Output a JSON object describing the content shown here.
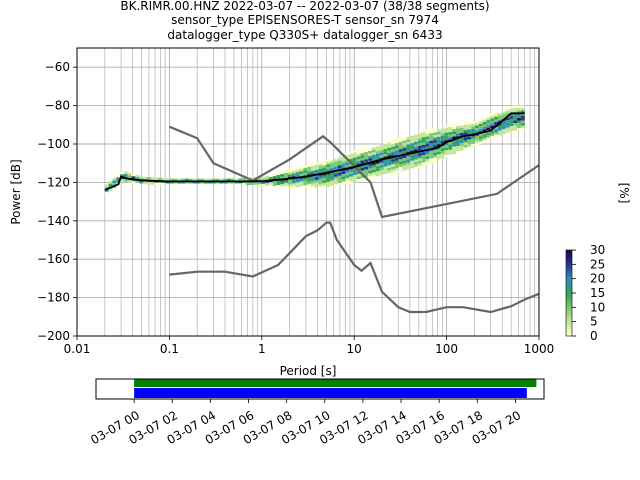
{
  "figure": {
    "title_lines": [
      "BK.RIMR.00.HNZ   2022-03-07 -- 2022-03-07  (38/38 segments)",
      "sensor_type EPISENSORES-T sensor_sn 7974",
      "datalogger_type Q330S+ datalogger_sn 6433"
    ]
  },
  "chart_data": [
    {
      "type": "heatmap",
      "title": "BK.RIMR.00.HNZ   2022-03-07 -- 2022-03-07  (38/38 segments)",
      "xlabel": "Period [s]",
      "ylabel": "Power [dB]",
      "xscale": "log",
      "xlim": [
        0.01,
        1000
      ],
      "ylim": [
        -200,
        -50
      ],
      "xticks": [
        0.01,
        0.1,
        1,
        10,
        100,
        1000
      ],
      "xtick_labels": [
        "0.01",
        "0.1",
        "1",
        "10",
        "100",
        "1000"
      ],
      "yticks": [
        -200,
        -180,
        -160,
        -140,
        -120,
        -100,
        -80,
        -60
      ],
      "ytick_labels": [
        "−200",
        "−180",
        "−160",
        "−140",
        "−120",
        "−100",
        "−80",
        "−60"
      ],
      "grid": true,
      "colorbar": {
        "label": "[%]",
        "range": [
          0,
          30
        ],
        "ticks": [
          0,
          5,
          10,
          15,
          20,
          25,
          30
        ]
      },
      "median_curve": [
        [
          0.02,
          -124
        ],
        [
          0.025,
          -122
        ],
        [
          0.028,
          -121
        ],
        [
          0.03,
          -117
        ],
        [
          0.035,
          -118
        ],
        [
          0.05,
          -119
        ],
        [
          0.1,
          -119.5
        ],
        [
          1,
          -119.5
        ],
        [
          2,
          -118
        ],
        [
          3,
          -117
        ],
        [
          5,
          -115
        ],
        [
          10,
          -112
        ],
        [
          20,
          -108
        ],
        [
          40,
          -105
        ],
        [
          80,
          -102
        ],
        [
          100,
          -99
        ],
        [
          150,
          -96
        ],
        [
          200,
          -95
        ],
        [
          300,
          -93
        ],
        [
          500,
          -84
        ],
        [
          700,
          -84
        ]
      ],
      "reference_models": [
        {
          "points": [
            [
              0.1,
              -91
            ],
            [
              0.2,
              -97
            ],
            [
              0.3,
              -110
            ],
            [
              0.8,
              -119
            ],
            [
              2,
              -108
            ],
            [
              4,
              -98
            ],
            [
              4.6,
              -96
            ],
            [
              5.5,
              -99
            ],
            [
              15,
              -120
            ],
            [
              20,
              -138
            ],
            [
              350,
              -126
            ],
            [
              1000,
              -111
            ]
          ]
        },
        {
          "points": [
            [
              0.1,
              -168
            ],
            [
              0.2,
              -166.5
            ],
            [
              0.4,
              -166.5
            ],
            [
              0.8,
              -169
            ],
            [
              1.5,
              -163
            ],
            [
              3,
              -148
            ],
            [
              4,
              -145
            ],
            [
              5,
              -141
            ],
            [
              5.5,
              -141
            ],
            [
              6.5,
              -150
            ],
            [
              10,
              -163
            ],
            [
              12,
              -166
            ],
            [
              15,
              -162
            ],
            [
              20,
              -177
            ],
            [
              30,
              -185
            ],
            [
              40,
              -187.5
            ],
            [
              60,
              -187.5
            ],
            [
              100,
              -185
            ],
            [
              150,
              -185
            ],
            [
              300,
              -187.5
            ],
            [
              500,
              -184.5
            ],
            [
              700,
              -181
            ],
            [
              1000,
              -178
            ]
          ]
        }
      ],
      "density_band": [
        [
          0.02,
          -126,
          -121
        ],
        [
          0.03,
          -120,
          -114
        ],
        [
          0.05,
          -121,
          -117
        ],
        [
          0.1,
          -121,
          -118
        ],
        [
          0.5,
          -121,
          -118
        ],
        [
          1,
          -122,
          -117
        ],
        [
          2,
          -123,
          -113
        ],
        [
          5,
          -123,
          -108
        ],
        [
          10,
          -121,
          -103
        ],
        [
          20,
          -117,
          -99
        ],
        [
          50,
          -113,
          -93
        ],
        [
          100,
          -107,
          -90
        ],
        [
          200,
          -101,
          -88
        ],
        [
          300,
          -98,
          -84
        ],
        [
          500,
          -94,
          -80
        ],
        [
          700,
          -93,
          -80
        ]
      ]
    },
    {
      "type": "timeline",
      "tick_labels": [
        "03-07 00",
        "03-07 02",
        "03-07 04",
        "03-07 06",
        "03-07 08",
        "03-07 10",
        "03-07 12",
        "03-07 14",
        "03-07 16",
        "03-07 18",
        "03-07 20"
      ],
      "tick_hours": [
        0,
        2,
        4,
        6,
        8,
        10,
        12,
        14,
        16,
        18,
        20
      ],
      "xlim_hours": [
        -2,
        21.5
      ],
      "bars": [
        {
          "color": "#008000",
          "start_hour": 0,
          "end_hour": 21.1
        },
        {
          "color": "#0000ff",
          "start_hour": 0,
          "end_hour": 20.6
        }
      ]
    }
  ],
  "colors": {
    "median": "#000000",
    "reference": "#666666",
    "grid": "#b0b0b0",
    "colormap": [
      "#ffffcc",
      "#c2e699",
      "#78c679",
      "#31a354",
      "#2b8cbe",
      "#253494",
      "#2d004b"
    ]
  }
}
